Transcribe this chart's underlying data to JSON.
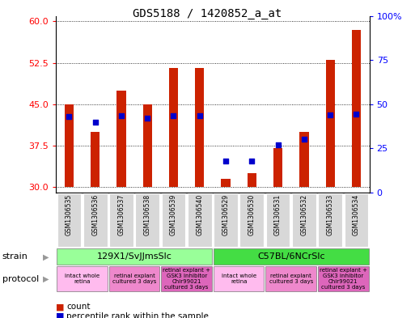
{
  "title": "GDS5188 / 1420852_a_at",
  "samples": [
    "GSM1306535",
    "GSM1306536",
    "GSM1306537",
    "GSM1306538",
    "GSM1306539",
    "GSM1306540",
    "GSM1306529",
    "GSM1306530",
    "GSM1306531",
    "GSM1306532",
    "GSM1306533",
    "GSM1306534"
  ],
  "count_values": [
    45.0,
    40.0,
    47.5,
    45.0,
    51.5,
    51.5,
    31.5,
    32.5,
    37.0,
    40.0,
    53.0,
    58.5
  ],
  "percentile_pct": [
    43.0,
    40.0,
    43.5,
    42.0,
    43.5,
    43.5,
    18.0,
    18.0,
    27.0,
    30.0,
    44.0,
    44.5
  ],
  "ylim_left": [
    29,
    61
  ],
  "yticks_left": [
    30,
    37.5,
    45,
    52.5,
    60
  ],
  "yticks_right": [
    0,
    25,
    50,
    75,
    100
  ],
  "ylim_right": [
    0,
    100
  ],
  "bar_bottom": 30,
  "bar_color": "#cc2200",
  "dot_color": "#0000cc",
  "dot_size": 18,
  "grid_color": "black",
  "strain_groups": [
    {
      "label": "129X1/SvJJmsSlc",
      "start": 0,
      "end": 5,
      "color": "#99ff99"
    },
    {
      "label": "C57BL/6NCrSlc",
      "start": 6,
      "end": 11,
      "color": "#44dd44"
    }
  ],
  "protocol_groups": [
    {
      "label": "intact whole\nretina",
      "start": 0,
      "end": 1,
      "color": "#ffbbee"
    },
    {
      "label": "retinal explant\ncultured 3 days",
      "start": 2,
      "end": 3,
      "color": "#ee88cc"
    },
    {
      "label": "retinal explant +\nGSK3 inhibitor\nChir99021\ncultured 3 days",
      "start": 4,
      "end": 5,
      "color": "#dd66bb"
    },
    {
      "label": "intact whole\nretina",
      "start": 6,
      "end": 7,
      "color": "#ffbbee"
    },
    {
      "label": "retinal explant\ncultured 3 days",
      "start": 8,
      "end": 9,
      "color": "#ee88cc"
    },
    {
      "label": "retinal explant +\nGSK3 inhibitor\nChir99021\ncultured 3 days",
      "start": 10,
      "end": 11,
      "color": "#dd66bb"
    }
  ],
  "legend_count_color": "#cc2200",
  "legend_dot_color": "#0000cc",
  "title_fontsize": 10,
  "tick_fontsize": 8,
  "label_fontsize": 5.5,
  "strain_fontsize": 8,
  "prot_fontsize": 5.0,
  "legend_fontsize": 7.5,
  "bar_width": 0.35
}
